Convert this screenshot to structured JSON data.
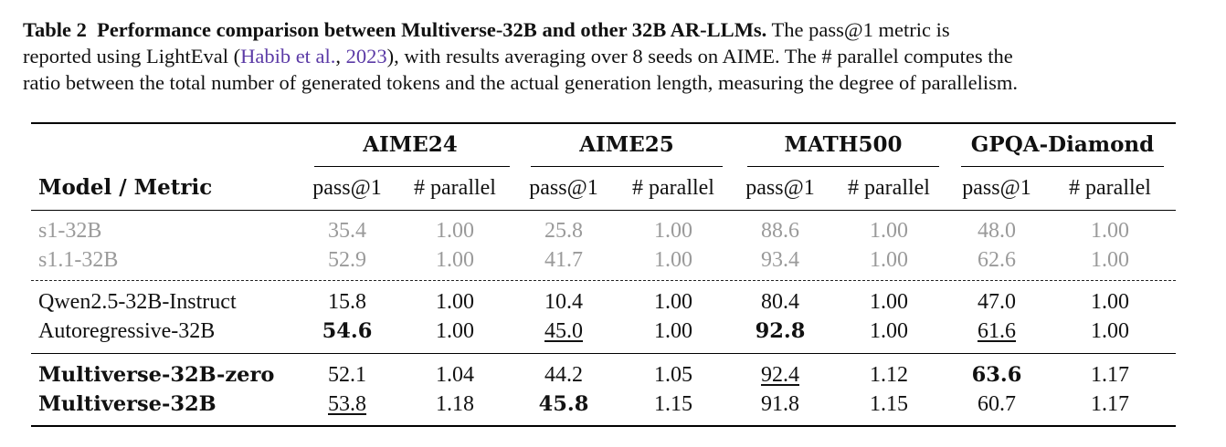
{
  "caption": {
    "label": "Table 2",
    "title": "Performance comparison between Multiverse-32B and other 32B AR-LLMs.",
    "text_line1": "The pass@1 metric is",
    "text_line2_a": "reported using LightEval (",
    "citation_author": "Habib et al.",
    "citation_sep": ", ",
    "citation_year": "2023",
    "text_line2_b": "), with results averaging over 8 seeds on AIME. The # parallel computes the",
    "text_line3": "ratio between the total number of generated tokens and the actual generation length, measuring the degree of parallelism."
  },
  "table": {
    "model_header": "Model / Metric",
    "benchmarks": [
      "AIME24",
      "AIME25",
      "MATH500",
      "GPQA-Diamond"
    ],
    "metrics": [
      "pass@1",
      "# parallel",
      "pass@1",
      "# parallel",
      "pass@1",
      "# parallel",
      "pass@1",
      "# parallel"
    ],
    "rows": [
      {
        "model": "s1-32B",
        "values": [
          "35.4",
          "1.00",
          "25.8",
          "1.00",
          "88.6",
          "1.00",
          "48.0",
          "1.00"
        ]
      },
      {
        "model": "s1.1-32B",
        "values": [
          "52.9",
          "1.00",
          "41.7",
          "1.00",
          "93.4",
          "1.00",
          "62.6",
          "1.00"
        ]
      },
      {
        "model": "Qwen2.5-32B-Instruct",
        "values": [
          "15.8",
          "1.00",
          "10.4",
          "1.00",
          "80.4",
          "1.00",
          "47.0",
          "1.00"
        ]
      },
      {
        "model": "Autoregressive-32B",
        "values": [
          "54.6",
          "1.00",
          "45.0",
          "1.00",
          "92.8",
          "1.00",
          "61.6",
          "1.00"
        ]
      },
      {
        "model": "Multiverse-32B-zero",
        "values": [
          "52.1",
          "1.04",
          "44.2",
          "1.05",
          "92.4",
          "1.12",
          "63.6",
          "1.17"
        ]
      },
      {
        "model": "Multiverse-32B",
        "values": [
          "53.8",
          "1.18",
          "45.8",
          "1.15",
          "91.8",
          "1.15",
          "60.7",
          "1.17"
        ]
      }
    ]
  }
}
